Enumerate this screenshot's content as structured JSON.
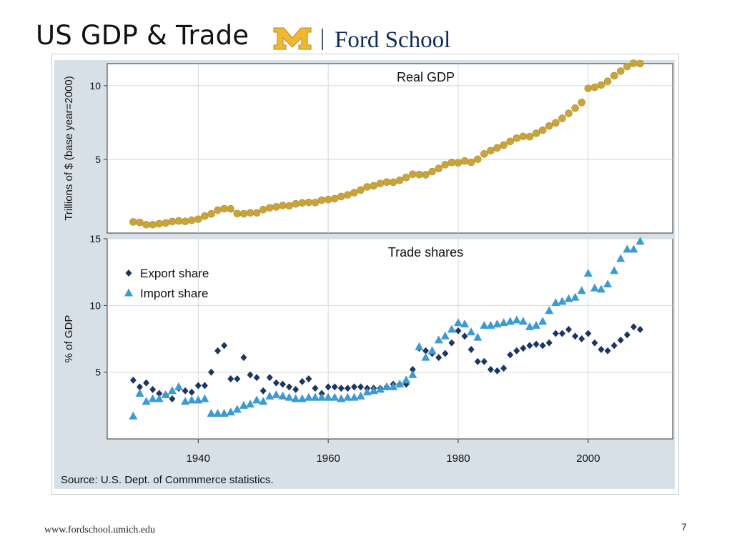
{
  "slide": {
    "title": "US GDP & Trade",
    "logo_text": "Ford School",
    "logo_mark": "M",
    "footer_url": "www.fordschool.umich.edu",
    "page_number": "7"
  },
  "chart_data": [
    {
      "type": "scatter",
      "title": "Real GDP",
      "ylabel": "Trillions of $  (base year=2000)",
      "xlim": [
        1926,
        2013
      ],
      "ylim": [
        0,
        11.5
      ],
      "yticks": [
        5,
        10
      ],
      "xticks": [
        1940,
        1960,
        1980,
        2000
      ],
      "grid": true,
      "color": "#c9a43a",
      "series": [
        {
          "name": "Real GDP",
          "x": [
            1930,
            1931,
            1932,
            1933,
            1934,
            1935,
            1936,
            1937,
            1938,
            1939,
            1940,
            1941,
            1942,
            1943,
            1944,
            1945,
            1946,
            1947,
            1948,
            1949,
            1950,
            1951,
            1952,
            1953,
            1954,
            1955,
            1956,
            1957,
            1958,
            1959,
            1960,
            1961,
            1962,
            1963,
            1964,
            1965,
            1966,
            1967,
            1968,
            1969,
            1970,
            1971,
            1972,
            1973,
            1974,
            1975,
            1976,
            1977,
            1978,
            1979,
            1980,
            1981,
            1982,
            1983,
            1984,
            1985,
            1986,
            1987,
            1988,
            1989,
            1990,
            1991,
            1992,
            1993,
            1994,
            1995,
            1996,
            1997,
            1998,
            1999,
            2000,
            2001,
            2002,
            2003,
            2004,
            2005,
            2006,
            2007,
            2008
          ],
          "values": [
            0.75,
            0.72,
            0.57,
            0.57,
            0.63,
            0.68,
            0.78,
            0.82,
            0.79,
            0.87,
            0.94,
            1.15,
            1.3,
            1.55,
            1.65,
            1.64,
            1.32,
            1.31,
            1.37,
            1.37,
            1.59,
            1.71,
            1.78,
            1.87,
            1.85,
            1.98,
            2.05,
            2.08,
            2.07,
            2.23,
            2.27,
            2.33,
            2.48,
            2.59,
            2.74,
            2.92,
            3.13,
            3.21,
            3.36,
            3.46,
            3.45,
            3.58,
            3.77,
            3.99,
            3.97,
            3.96,
            4.17,
            4.38,
            4.64,
            4.79,
            4.77,
            4.89,
            4.8,
            5.01,
            5.37,
            5.59,
            5.78,
            5.97,
            6.22,
            6.44,
            6.56,
            6.54,
            6.77,
            6.98,
            7.27,
            7.48,
            7.78,
            8.12,
            8.48,
            8.86,
            9.82,
            9.89,
            10.05,
            10.3,
            10.68,
            10.99,
            11.3,
            11.52,
            11.5
          ]
        }
      ]
    },
    {
      "type": "scatter",
      "title": "Trade shares",
      "ylabel": "% of GDP",
      "xlabel": "",
      "xlim": [
        1926,
        2013
      ],
      "ylim": [
        0,
        15
      ],
      "yticks": [
        5,
        10,
        15
      ],
      "xticks": [
        1940,
        1960,
        1980,
        2000
      ],
      "grid": true,
      "legend": "top-left",
      "source_note": "Source:  U.S. Dept. of Commmerce statistics.",
      "series": [
        {
          "name": "Export share",
          "marker": "diamond",
          "color": "#1b3564",
          "x": [
            1930,
            1931,
            1932,
            1933,
            1934,
            1935,
            1936,
            1937,
            1938,
            1939,
            1940,
            1941,
            1942,
            1943,
            1944,
            1945,
            1946,
            1947,
            1948,
            1949,
            1950,
            1951,
            1952,
            1953,
            1954,
            1955,
            1956,
            1957,
            1958,
            1959,
            1960,
            1961,
            1962,
            1963,
            1964,
            1965,
            1966,
            1967,
            1968,
            1969,
            1970,
            1971,
            1972,
            1973,
            1974,
            1975,
            1976,
            1977,
            1978,
            1979,
            1980,
            1981,
            1982,
            1983,
            1984,
            1985,
            1986,
            1987,
            1988,
            1989,
            1990,
            1991,
            1992,
            1993,
            1994,
            1995,
            1996,
            1997,
            1998,
            1999,
            2000,
            2001,
            2002,
            2003,
            2004,
            2005,
            2006,
            2007,
            2008
          ],
          "values": [
            4.4,
            3.9,
            4.2,
            3.7,
            3.4,
            3.3,
            3.0,
            3.8,
            3.6,
            3.5,
            4.0,
            4.0,
            5.0,
            6.6,
            7.0,
            4.5,
            4.5,
            6.1,
            4.8,
            4.6,
            3.6,
            4.6,
            4.2,
            4.1,
            3.9,
            3.7,
            4.3,
            4.5,
            3.8,
            3.4,
            3.9,
            3.9,
            3.8,
            3.8,
            3.9,
            3.9,
            3.8,
            3.8,
            3.8,
            3.9,
            4.1,
            4.1,
            4.1,
            5.2,
            6.8,
            6.6,
            6.4,
            6.1,
            6.4,
            7.2,
            8.1,
            7.7,
            6.7,
            5.8,
            5.8,
            5.2,
            5.1,
            5.3,
            6.3,
            6.6,
            6.8,
            7.0,
            7.1,
            7.0,
            7.2,
            7.9,
            7.9,
            8.2,
            7.7,
            7.5,
            7.9,
            7.2,
            6.7,
            6.6,
            7.0,
            7.4,
            7.8,
            8.4,
            8.2
          ]
        },
        {
          "name": "Import share",
          "marker": "triangle",
          "color": "#3b9bd4",
          "x": [
            1930,
            1931,
            1932,
            1933,
            1934,
            1935,
            1936,
            1937,
            1938,
            1939,
            1940,
            1941,
            1942,
            1943,
            1944,
            1945,
            1946,
            1947,
            1948,
            1949,
            1950,
            1951,
            1952,
            1953,
            1954,
            1955,
            1956,
            1957,
            1958,
            1959,
            1960,
            1961,
            1962,
            1963,
            1964,
            1965,
            1966,
            1967,
            1968,
            1969,
            1970,
            1971,
            1972,
            1973,
            1974,
            1975,
            1976,
            1977,
            1978,
            1979,
            1980,
            1981,
            1982,
            1983,
            1984,
            1985,
            1986,
            1987,
            1988,
            1989,
            1990,
            1991,
            1992,
            1993,
            1994,
            1995,
            1996,
            1997,
            1998,
            1999,
            2000,
            2001,
            2002,
            2003,
            2004,
            2005,
            2006,
            2007,
            2008
          ],
          "values": [
            1.7,
            3.4,
            2.8,
            3.0,
            3.0,
            3.3,
            3.6,
            3.9,
            2.8,
            2.9,
            2.9,
            3.0,
            1.9,
            1.9,
            1.9,
            2.0,
            2.2,
            2.5,
            2.6,
            2.9,
            2.8,
            3.2,
            3.3,
            3.2,
            3.1,
            3.0,
            3.0,
            3.1,
            3.1,
            3.1,
            3.1,
            3.1,
            3.0,
            3.1,
            3.1,
            3.2,
            3.5,
            3.6,
            3.7,
            3.9,
            3.9,
            4.1,
            4.4,
            4.8,
            6.9,
            6.1,
            6.6,
            7.4,
            7.7,
            8.2,
            8.7,
            8.6,
            8.0,
            7.6,
            8.5,
            8.5,
            8.6,
            8.7,
            8.8,
            8.9,
            8.8,
            8.4,
            8.5,
            8.8,
            9.6,
            10.2,
            10.3,
            10.5,
            10.6,
            11.1,
            12.4,
            11.3,
            11.2,
            11.6,
            12.6,
            13.5,
            14.2,
            14.2,
            14.8
          ]
        }
      ]
    }
  ]
}
